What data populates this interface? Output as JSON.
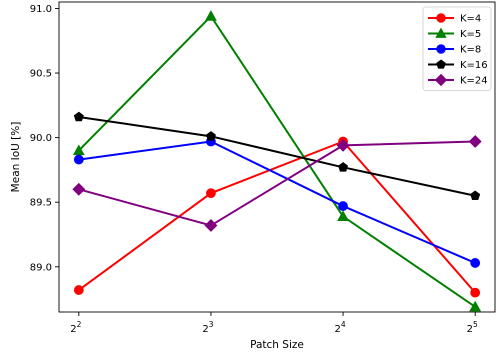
{
  "chart_data": {
    "type": "line",
    "title": "",
    "xlabel": "Patch Size",
    "ylabel": "Mean IoU [%]",
    "x": [
      2,
      3,
      4,
      5
    ],
    "x_tick_labels": [
      {
        "base": "2",
        "exp": "2"
      },
      {
        "base": "2",
        "exp": "3"
      },
      {
        "base": "2",
        "exp": "4"
      },
      {
        "base": "2",
        "exp": "5"
      }
    ],
    "y_ticks": [
      89.0,
      89.5,
      90.0,
      90.5,
      91.0
    ],
    "y_tick_labels": [
      "89.0",
      "89.5",
      "90.0",
      "90.5",
      "91.0"
    ],
    "ylim": [
      88.65,
      91.05
    ],
    "grid": false,
    "legend_position": "top-right",
    "series": [
      {
        "name": "K=4",
        "color": "#ff0000",
        "marker": "circle",
        "values": [
          88.82,
          89.57,
          89.97,
          88.8
        ]
      },
      {
        "name": "K=5",
        "color": "#008000",
        "marker": "triangle",
        "values": [
          89.9,
          90.94,
          89.39,
          88.69
        ]
      },
      {
        "name": "K=8",
        "color": "#0000ff",
        "marker": "circle",
        "values": [
          89.83,
          89.97,
          89.47,
          89.03
        ]
      },
      {
        "name": "K=16",
        "color": "#000000",
        "marker": "pentagon",
        "values": [
          90.16,
          90.01,
          89.77,
          89.55
        ]
      },
      {
        "name": "K=24",
        "color": "#800080",
        "marker": "diamond",
        "values": [
          89.6,
          89.32,
          89.94,
          89.97
        ]
      }
    ]
  }
}
